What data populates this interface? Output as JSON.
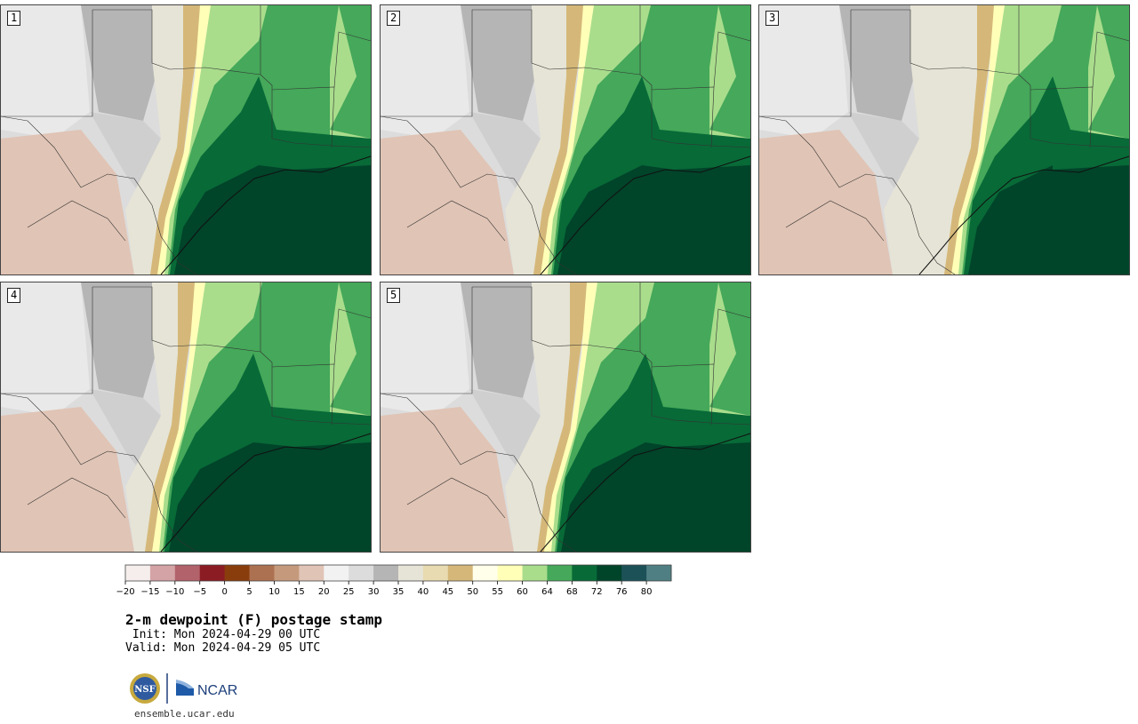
{
  "panels": [
    {
      "label": "1"
    },
    {
      "label": "2"
    },
    {
      "label": "3"
    },
    {
      "label": "4"
    },
    {
      "label": "5"
    }
  ],
  "legend": {
    "ticks": [
      "−20",
      "−15",
      "−10",
      "−5",
      "0",
      "5",
      "10",
      "15",
      "20",
      "25",
      "30",
      "35",
      "40",
      "45",
      "50",
      "55",
      "60",
      "64",
      "68",
      "72",
      "76",
      "80"
    ],
    "colors": [
      "#f5eeed",
      "#d4a3a6",
      "#b2626b",
      "#8c1c24",
      "#8a3d0c",
      "#ac7150",
      "#c59a7c",
      "#e0c4b5",
      "#f2f2f2",
      "#dcdcdc",
      "#b5b5b5",
      "#e6e4d6",
      "#e8dbb1",
      "#d5b879",
      "#ffffea",
      "#ffffb8",
      "#a9dd8c",
      "#45a85a",
      "#086a37",
      "#00442a",
      "#1d5158",
      "#4f7f83"
    ]
  },
  "map_colors": {
    "gulf": "#00442a",
    "dark_green": "#086a37",
    "mid_green": "#45a85a",
    "light_green": "#a9dd8c",
    "pale_yellow": "#ffffb8",
    "tan": "#d5b879",
    "sand": "#e6e4d6",
    "gray": "#b5b5b5",
    "light_gray": "#dcdcdc",
    "brown": "#e0c4b5"
  },
  "title": "2-m dewpoint (F) postage stamp",
  "init": " Init: Mon 2024-04-29 00 UTC",
  "valid": "Valid: Mon 2024-04-29 05 UTC",
  "logos": {
    "nsf": "NSF",
    "ncar": "NCAR"
  },
  "website": "ensemble.ucar.edu"
}
